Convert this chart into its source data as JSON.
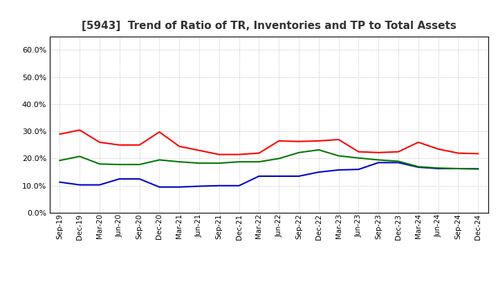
{
  "title": "[5943]  Trend of Ratio of TR, Inventories and TP to Total Assets",
  "labels": [
    "Sep-19",
    "Dec-19",
    "Mar-20",
    "Jun-20",
    "Sep-20",
    "Dec-20",
    "Mar-21",
    "Jun-21",
    "Sep-21",
    "Dec-21",
    "Mar-22",
    "Jun-22",
    "Sep-22",
    "Dec-22",
    "Mar-23",
    "Jun-23",
    "Sep-23",
    "Dec-23",
    "Mar-24",
    "Jun-24",
    "Sep-24",
    "Dec-24"
  ],
  "trade_receivables": [
    0.29,
    0.305,
    0.26,
    0.25,
    0.25,
    0.298,
    0.245,
    0.23,
    0.215,
    0.215,
    0.22,
    0.265,
    0.263,
    0.265,
    0.27,
    0.225,
    0.222,
    0.225,
    0.26,
    0.235,
    0.22,
    0.218
  ],
  "inventories": [
    0.113,
    0.103,
    0.103,
    0.125,
    0.125,
    0.095,
    0.095,
    0.098,
    0.1,
    0.1,
    0.135,
    0.135,
    0.135,
    0.15,
    0.158,
    0.16,
    0.185,
    0.185,
    0.168,
    0.163,
    0.163,
    0.162
  ],
  "trade_payables": [
    0.193,
    0.208,
    0.18,
    0.178,
    0.178,
    0.195,
    0.188,
    0.183,
    0.183,
    0.188,
    0.188,
    0.2,
    0.222,
    0.232,
    0.21,
    0.202,
    0.195,
    0.19,
    0.17,
    0.165,
    0.163,
    0.162
  ],
  "tr_color": "#FF0000",
  "inv_color": "#0000CC",
  "tp_color": "#007700",
  "ylim": [
    0.0,
    0.65
  ],
  "yticks": [
    0.0,
    0.1,
    0.2,
    0.3,
    0.4,
    0.5,
    0.6
  ],
  "background_color": "#ffffff",
  "grid_color": "#bbbbbb",
  "title_color": "#333333"
}
